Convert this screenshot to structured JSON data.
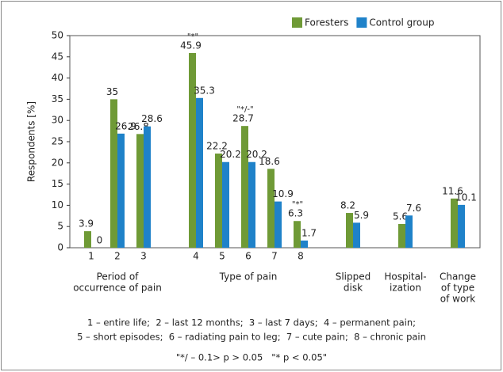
{
  "chart_data": {
    "type": "bar",
    "ylabel": "Respondents [%]",
    "categories": [
      "1",
      "2",
      "3",
      "4",
      "5",
      "6",
      "7",
      "8",
      "Slipped disk",
      "Hospital-ization",
      "Change of type of work"
    ],
    "category_lines": [
      null,
      null,
      null,
      null,
      null,
      null,
      null,
      null,
      [
        "Slipped",
        "disk"
      ],
      [
        "Hospital-",
        "ization"
      ],
      [
        "Change",
        "of type",
        "of work"
      ]
    ],
    "groups": [
      {
        "lines": [
          "Period of",
          "occurrence of pain"
        ],
        "category": "2"
      },
      {
        "lines": [
          "Type of pain"
        ],
        "category": "6"
      }
    ],
    "series": [
      {
        "name": "Foresters",
        "color": "#6f9a36",
        "values": [
          3.9,
          35,
          26.8,
          45.9,
          22.2,
          28.7,
          18.6,
          6.3,
          8.2,
          5.6,
          11.6
        ]
      },
      {
        "name": "Control group",
        "color": "#1f82c9",
        "values": [
          0,
          26.9,
          28.6,
          35.3,
          20.2,
          20.2,
          10.9,
          1.7,
          5.9,
          7.6,
          10.1
        ]
      }
    ],
    "annotations": [
      {
        "text": "\"*\"",
        "category": "4"
      },
      {
        "text": "\"*/-\"",
        "category": "6"
      },
      {
        "text": "\"*\"",
        "category": "8"
      }
    ],
    "ylim": [
      0,
      50
    ],
    "yticks": [
      0,
      5,
      10,
      15,
      20,
      25,
      30,
      35,
      40,
      45,
      50
    ],
    "grid": false,
    "legend": "top-right",
    "notes": [
      "1 – entire life;  2 – last 12 months;  3 – last 7 days;  4 – permanent pain;",
      "5 – short episodes;  6 – radiating pain to leg;  7 – cute pain;  8 – chronic pain",
      "\"*/ – 0.1> p > 0.05   \"* p < 0.05\""
    ]
  }
}
